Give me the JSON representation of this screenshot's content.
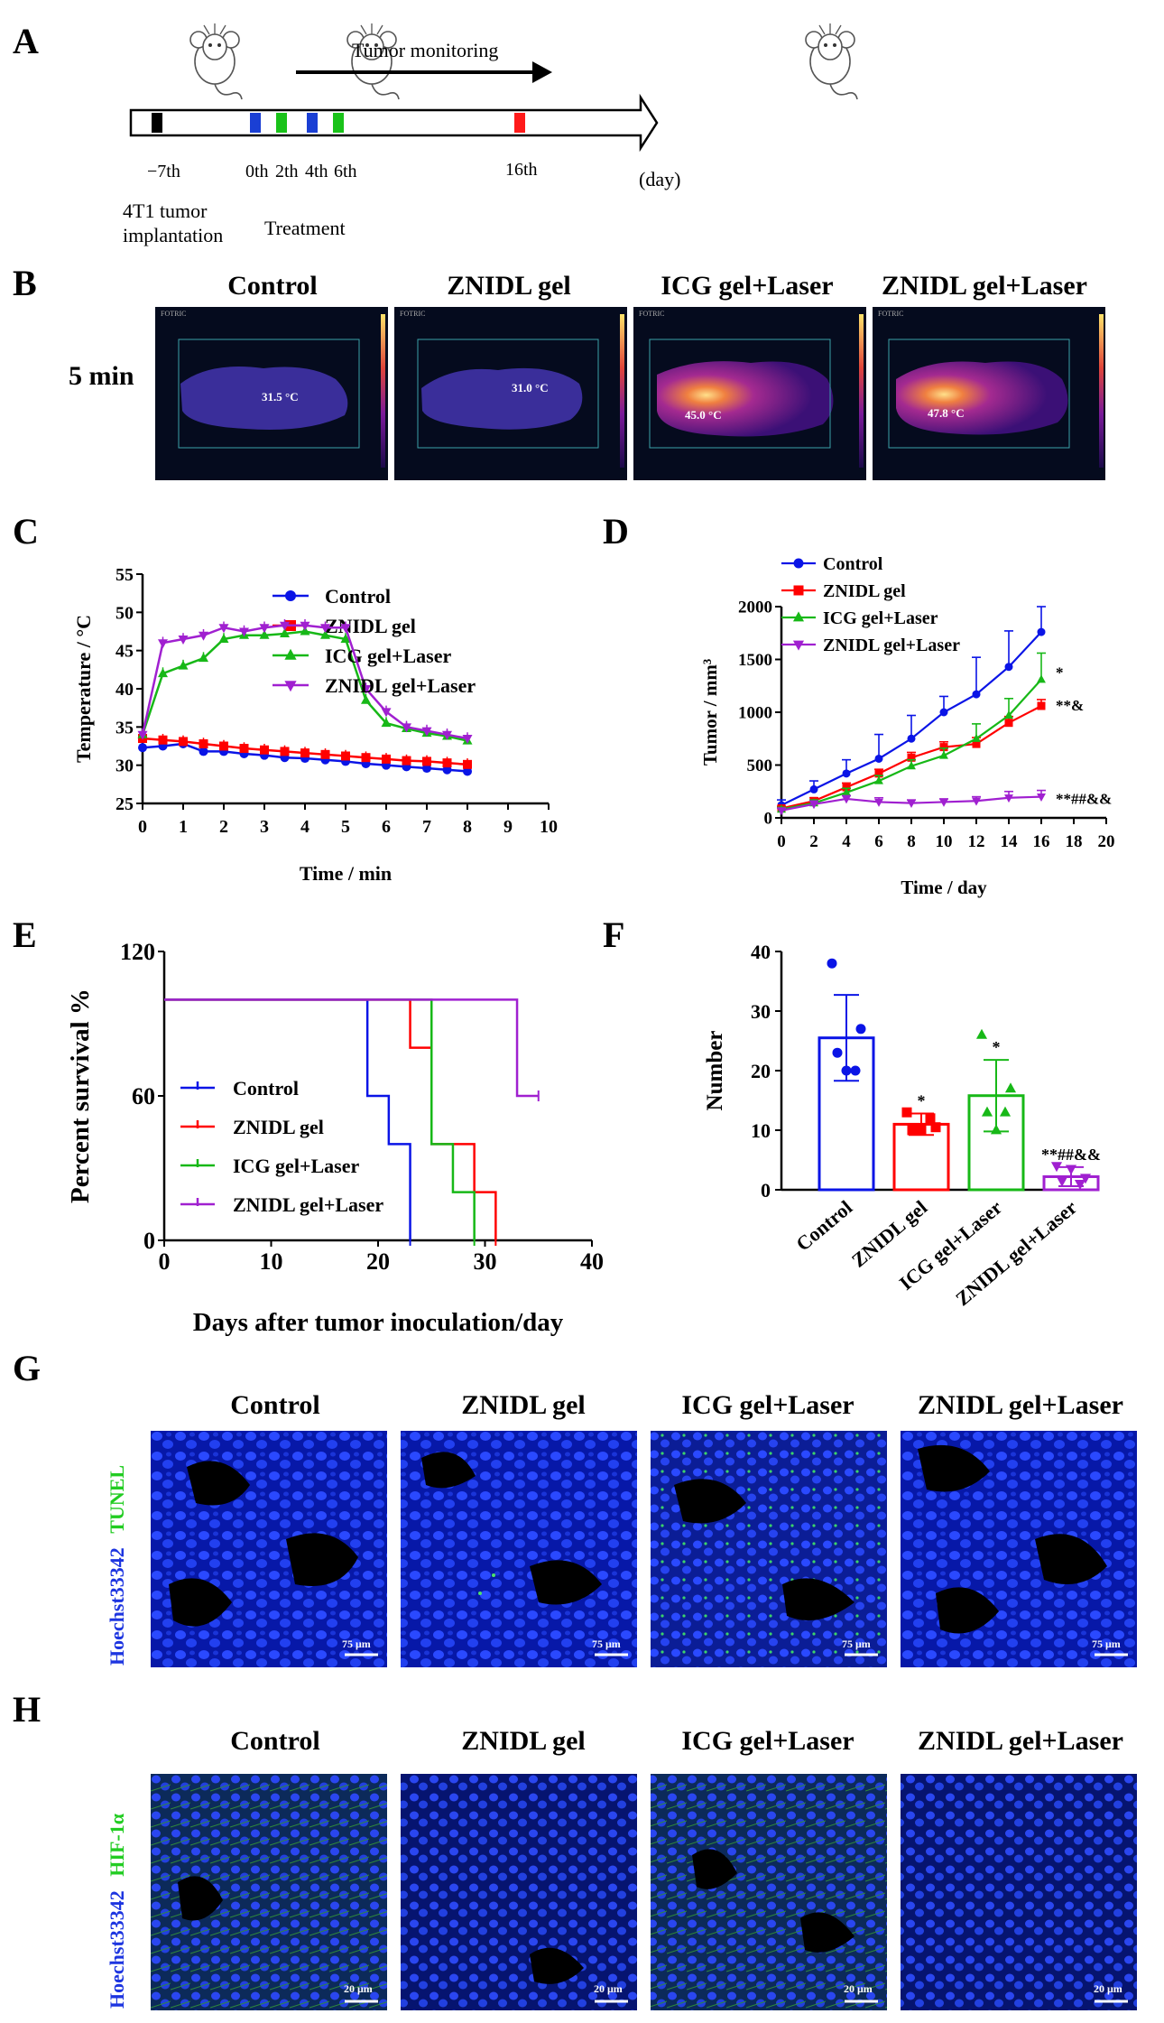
{
  "panels": {
    "A": {
      "letter": "A",
      "monitoring": "Tumor monitoring",
      "days": [
        "−7th",
        "0th",
        "2th",
        "4th",
        "6th",
        "16th"
      ],
      "day_unit": "(day)",
      "implant_line1": "4T1 tumor",
      "implant_line2": "implantation",
      "treatment": "Treatment",
      "marker_colors": {
        "implant": "#000000",
        "treat_blue": "#1a3fd4",
        "treat_green": "#19c219",
        "end": "#ff1a1a"
      }
    },
    "B": {
      "letter": "B",
      "row_label": "5 min",
      "titles": [
        "Control",
        "ZNIDL gel",
        "ICG gel+Laser",
        "ZNIDL gel+Laser"
      ],
      "temps": [
        "31.5 °C",
        "31.0 °C",
        "45.0 °C",
        "47.8 °C"
      ],
      "brand": "FOTRIC"
    },
    "C": {
      "letter": "C"
    },
    "D": {
      "letter": "D"
    },
    "E": {
      "letter": "E"
    },
    "F": {
      "letter": "F"
    },
    "G": {
      "letter": "G",
      "titles": [
        "Control",
        "ZNIDL gel",
        "ICG gel+Laser",
        "ZNIDL gel+Laser"
      ],
      "stain_green": "TUNEL",
      "stain_blue": "Hoechst33342",
      "scale": "75 μm",
      "scale_ticks": [
        "0",
        "μm",
        "75"
      ]
    },
    "H": {
      "letter": "H",
      "titles": [
        "Control",
        "ZNIDL gel",
        "ICG gel+Laser",
        "ZNIDL gel+Laser"
      ],
      "stain_green": "HIF-1α",
      "stain_blue": "Hoechst33342",
      "scale": "20 μm"
    }
  },
  "chart_data": [
    {
      "id": "C",
      "type": "line",
      "xlabel": "Time / min",
      "ylabel": "Temperature / °C",
      "xlim": [
        0,
        10
      ],
      "ylim": [
        25,
        55
      ],
      "xticks": [
        0,
        1,
        2,
        3,
        4,
        5,
        6,
        7,
        8,
        9,
        10
      ],
      "yticks": [
        25,
        30,
        35,
        40,
        45,
        50,
        55
      ],
      "legend": "top-right",
      "x": [
        0,
        0.5,
        1,
        1.5,
        2,
        2.5,
        3,
        3.5,
        4,
        4.5,
        5,
        5.5,
        6,
        6.5,
        7,
        7.5,
        8
      ],
      "series": [
        {
          "name": "Control",
          "color": "#0a14e6",
          "marker": "circle",
          "values": [
            32.3,
            32.5,
            32.8,
            31.8,
            31.8,
            31.5,
            31.3,
            31.0,
            30.9,
            30.7,
            30.5,
            30.2,
            30.0,
            29.8,
            29.6,
            29.4,
            29.2
          ]
        },
        {
          "name": "ZNIDL gel",
          "color": "#ff0000",
          "marker": "square",
          "values": [
            33.5,
            33.3,
            33.1,
            32.8,
            32.5,
            32.2,
            32.0,
            31.8,
            31.6,
            31.4,
            31.2,
            31.0,
            30.8,
            30.6,
            30.5,
            30.3,
            30.1
          ]
        },
        {
          "name": "ICG gel+Laser",
          "color": "#17b817",
          "marker": "triangle-up",
          "values": [
            34.0,
            42.0,
            43.0,
            44.0,
            46.5,
            47.0,
            47.0,
            47.2,
            47.5,
            47.0,
            46.5,
            38.5,
            35.5,
            34.8,
            34.2,
            33.8,
            33.2
          ]
        },
        {
          "name": "ZNIDL gel+Laser",
          "color": "#a020d0",
          "marker": "triangle-down",
          "values": [
            34.0,
            46.0,
            46.5,
            47.0,
            48.0,
            47.5,
            48.0,
            48.3,
            48.3,
            48.0,
            48.0,
            40.0,
            37.0,
            35.0,
            34.5,
            34.0,
            33.5
          ]
        }
      ]
    },
    {
      "id": "D",
      "type": "line",
      "xlabel": "Time / day",
      "ylabel": "Tumor / mm³",
      "xlim": [
        0,
        20
      ],
      "ylim": [
        0,
        2000
      ],
      "xticks": [
        0,
        2,
        4,
        6,
        8,
        10,
        12,
        14,
        16,
        18,
        20
      ],
      "yticks": [
        0,
        500,
        1000,
        1500,
        2000
      ],
      "legend": "top-left",
      "x": [
        0,
        2,
        4,
        6,
        8,
        10,
        12,
        14,
        16
      ],
      "series": [
        {
          "name": "Control",
          "color": "#0a14e6",
          "marker": "circle",
          "values": [
            120,
            270,
            420,
            560,
            750,
            1000,
            1170,
            1430,
            1760
          ],
          "errors": [
            50,
            80,
            130,
            230,
            220,
            150,
            350,
            340,
            240
          ]
        },
        {
          "name": "ZNIDL gel",
          "color": "#ff0000",
          "marker": "square",
          "values": [
            90,
            160,
            290,
            420,
            570,
            670,
            700,
            900,
            1060
          ],
          "errors": [
            20,
            30,
            40,
            40,
            50,
            50,
            60,
            60,
            60
          ]
        },
        {
          "name": "ICG gel+Laser",
          "color": "#17b817",
          "marker": "triangle-up",
          "values": [
            80,
            140,
            240,
            350,
            490,
            590,
            750,
            970,
            1310
          ],
          "errors": [
            20,
            30,
            40,
            50,
            60,
            70,
            140,
            160,
            250
          ]
        },
        {
          "name": "ZNIDL gel+Laser",
          "color": "#a020d0",
          "marker": "triangle-down",
          "values": [
            70,
            130,
            180,
            150,
            140,
            150,
            160,
            190,
            200
          ],
          "errors": [
            20,
            30,
            30,
            40,
            30,
            30,
            40,
            60,
            60
          ]
        }
      ],
      "annotations": [
        "*",
        "**&",
        "**##&&"
      ]
    },
    {
      "id": "E",
      "type": "line",
      "xlabel": "Days after tumor inoculation/day",
      "ylabel": "Percent survival %",
      "xlim": [
        0,
        40
      ],
      "ylim": [
        0,
        120
      ],
      "xticks": [
        0,
        10,
        20,
        30,
        40
      ],
      "yticks": [
        0,
        60,
        120
      ],
      "legend": "left",
      "series": [
        {
          "name": "Control",
          "color": "#0a14e6",
          "marker": "plus",
          "steps": [
            [
              0,
              100
            ],
            [
              19,
              100
            ],
            [
              19,
              60
            ],
            [
              21,
              60
            ],
            [
              21,
              40
            ],
            [
              23,
              40
            ],
            [
              23,
              0
            ]
          ]
        },
        {
          "name": "ZNIDL gel",
          "color": "#ff0000",
          "marker": "plus",
          "steps": [
            [
              0,
              100
            ],
            [
              23,
              100
            ],
            [
              23,
              80
            ],
            [
              25,
              80
            ],
            [
              25,
              40
            ],
            [
              29,
              40
            ],
            [
              29,
              20
            ],
            [
              31,
              20
            ],
            [
              31,
              0
            ]
          ]
        },
        {
          "name": "ICG gel+Laser",
          "color": "#17b817",
          "marker": "plus",
          "steps": [
            [
              0,
              100
            ],
            [
              25,
              100
            ],
            [
              25,
              40
            ],
            [
              27,
              40
            ],
            [
              27,
              20
            ],
            [
              29,
              20
            ],
            [
              29,
              0
            ]
          ]
        },
        {
          "name": "ZNIDL gel+Laser",
          "color": "#a020d0",
          "marker": "plus",
          "steps": [
            [
              0,
              100
            ],
            [
              33,
              100
            ],
            [
              33,
              60
            ],
            [
              35,
              60
            ]
          ]
        }
      ]
    },
    {
      "id": "F",
      "type": "bar",
      "ylabel": "Number",
      "ylim": [
        0,
        40
      ],
      "yticks": [
        0,
        10,
        20,
        30,
        40
      ],
      "categories": [
        "Control",
        "ZNIDL gel",
        "ICG gel+Laser",
        "ZNIDL gel+Laser"
      ],
      "values": [
        25.5,
        11.0,
        15.8,
        2.2
      ],
      "errors": [
        7.2,
        1.8,
        6.0,
        1.6
      ],
      "colors": [
        "#0a14e6",
        "#ff0000",
        "#17b817",
        "#a020d0"
      ],
      "markers": [
        "circle",
        "square",
        "triangle-up",
        "triangle-down"
      ],
      "points": [
        [
          38,
          27,
          23,
          20,
          20
        ],
        [
          13,
          10.5,
          10,
          12,
          10
        ],
        [
          26,
          17,
          13,
          13,
          10
        ],
        [
          4,
          2,
          1.5,
          1,
          3.5
        ]
      ],
      "annotations": [
        "",
        "*",
        "*",
        "**##&&"
      ]
    }
  ]
}
